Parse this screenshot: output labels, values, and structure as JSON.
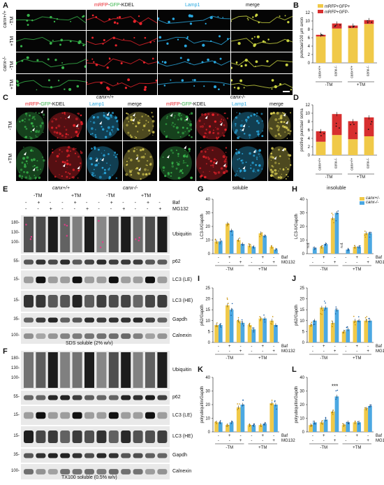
{
  "panels": [
    "A",
    "B",
    "C",
    "D",
    "E",
    "F",
    "G",
    "H",
    "I",
    "J",
    "K",
    "L"
  ],
  "colors": {
    "mrfp": "#e8232b",
    "gfp": "#37b34a",
    "lamp1": "#29a8df",
    "yellow": "#f0c948",
    "blue": "#4ba8e2",
    "red": "#d72f2f",
    "pinkDot": "#e83b8b"
  },
  "A": {
    "h_mrfp": "mRFP",
    "h_sep1": "-",
    "h_gfp": "GFP",
    "h_sep2": "-",
    "h_kdel": "KDEL",
    "h_lamp1": "Lamp1",
    "h_merge": "merge",
    "g_wt": "canx+/+",
    "g_ko": "canx-/-",
    "tm_neg": "-TM",
    "tm_pos": "+TM"
  },
  "C": {
    "wt": "canx+/+",
    "ko": "canx-/-",
    "h_mrfp": "mRFP",
    "h_sep1": "-",
    "h_gfp": "GFP",
    "h_sep2": "-",
    "h_kdel": "KDEL",
    "h_lamp1": "Lamp1",
    "h_merge": "merge",
    "tm_neg": "-TM",
    "tm_pos": "+TM"
  },
  "E": {
    "wt": "canx+/+",
    "ko": "canx-/-",
    "tm_neg": "-TM",
    "tm_pos": "+TM",
    "baf": "Baf",
    "mg132": "MG132",
    "baf_row": [
      "-",
      "+",
      "-",
      "-",
      "+",
      "-",
      "-",
      "+",
      "-",
      "-",
      "+",
      "-"
    ],
    "mg_row": [
      "-",
      "-",
      "+",
      "-",
      "-",
      "+",
      "-",
      "-",
      "+",
      "-",
      "-",
      "+"
    ],
    "rows": [
      "Ubiquitin",
      "p62",
      "LC3 (LE)",
      "LC3 (HE)",
      "Gapdh",
      "Calnexin"
    ],
    "mw_ubq": [
      "180-",
      "130-",
      "100-"
    ],
    "mw_p62": "55-",
    "mw_lc3le": "15-",
    "mw_lc3he": "15-",
    "mw_gapdh": "35-",
    "mw_calnexin": "100-",
    "footer": "SDS soluble (2% w/v)"
  },
  "F": {
    "rows": [
      "Ubiquitin",
      "p62",
      "LC3 (LE)",
      "LC3 (HE)",
      "Gapdh",
      "Calnexin"
    ],
    "mw_ubq": [
      "180-",
      "130-",
      "100-"
    ],
    "mw_p62": "55-",
    "mw_lc3le": "15-",
    "mw_lc3he": "15-",
    "mw_gapdh": "35-",
    "mw_calnexin": "100-",
    "footer": "TX100 soluble (0.5% w/v)"
  },
  "G": {
    "title": "soluble"
  },
  "H": {
    "title": "insoluble",
    "nd": "n.d."
  },
  "L": {
    "sig": "***"
  },
  "legend_bar": {
    "wt": "canx+/-",
    "ko": "canx-/-"
  },
  "chart_data": [
    {
      "panel": "B",
      "type": "bar",
      "ylabel": "punctae/100 µm axon",
      "ylim": [
        0,
        12
      ],
      "yticks": [
        0,
        2,
        4,
        6,
        8,
        10,
        12
      ],
      "categories": [
        "canx+/+",
        "canx-/-",
        "canx+/+",
        "canx-/-"
      ],
      "groups": [
        "-TM",
        "+TM"
      ],
      "series": [
        {
          "name": "mRFP+GFP+",
          "values": [
            6.3,
            8.2,
            8.3,
            9.3
          ]
        },
        {
          "name": "mRFP+GFP-",
          "values": [
            0.4,
            1.2,
            0.6,
            0.9
          ]
        }
      ],
      "legend": [
        "mRFP+GFP+",
        "mRFP+GFP-"
      ]
    },
    {
      "panel": "D",
      "type": "bar",
      "ylabel": "positive punctae/ soma",
      "ylim": [
        0,
        12
      ],
      "yticks": [
        0,
        2,
        4,
        6,
        8,
        10,
        12
      ],
      "categories": [
        "canx+/+",
        "canx-/-",
        "canx+/+",
        "canx-/-"
      ],
      "groups": [
        "-TM",
        "+TM"
      ],
      "series": [
        {
          "name": "mRFP+GFP+",
          "values": [
            3.2,
            4.8,
            3.8,
            4.5
          ]
        },
        {
          "name": "mRFP+GFP-",
          "values": [
            2.5,
            5.0,
            4.3,
            4.5
          ]
        }
      ]
    },
    {
      "panel": "G",
      "type": "bar",
      "title": "soluble",
      "ylabel": "LC3-II/Gapdh",
      "ylim": [
        0,
        40
      ],
      "yticks": [
        0,
        10,
        20,
        30,
        40
      ],
      "baf": [
        "-",
        "+",
        "-",
        "-",
        "+",
        "-"
      ],
      "mg132": [
        "-",
        "-",
        "+",
        "-",
        "-",
        "+"
      ],
      "groups": [
        "-TM",
        "+TM"
      ],
      "series": [
        {
          "name": "canx+/-",
          "values": [
            9,
            22,
            10,
            6,
            15,
            5
          ]
        },
        {
          "name": "canx-/-",
          "values": [
            9,
            17,
            7,
            5,
            13,
            3
          ]
        }
      ]
    },
    {
      "panel": "H",
      "type": "bar",
      "title": "insoluble",
      "ylabel": "LC3-II/Gapdh",
      "ylim": [
        0,
        40
      ],
      "yticks": [
        0,
        10,
        20,
        30,
        40
      ],
      "baf": [
        "-",
        "+",
        "-",
        "-",
        "+",
        "-"
      ],
      "mg132": [
        "-",
        "-",
        "+",
        "-",
        "-",
        "+"
      ],
      "groups": [
        "-TM",
        "+TM"
      ],
      "series": [
        {
          "name": "canx+/-",
          "values": [
            0,
            5,
            26,
            0,
            5,
            15
          ]
        },
        {
          "name": "canx-/-",
          "values": [
            4,
            7,
            30,
            3,
            5,
            15
          ]
        }
      ]
    },
    {
      "panel": "I",
      "type": "bar",
      "ylabel": "p62/Gapdh",
      "ylim": [
        0,
        25
      ],
      "yticks": [
        0,
        5,
        10,
        15,
        20,
        25
      ],
      "baf": [
        "-",
        "+",
        "-",
        "-",
        "+",
        "-"
      ],
      "mg132": [
        "-",
        "-",
        "+",
        "-",
        "-",
        "+"
      ],
      "groups": [
        "-TM",
        "+TM"
      ],
      "series": [
        {
          "name": "canx+/-",
          "values": [
            8,
            17,
            10,
            8,
            11,
            10
          ]
        },
        {
          "name": "canx-/-",
          "values": [
            8,
            15,
            9,
            6,
            11,
            8
          ]
        }
      ]
    },
    {
      "panel": "J",
      "type": "bar",
      "ylabel": "p62/Gapdh",
      "ylim": [
        0,
        25
      ],
      "yticks": [
        0,
        5,
        10,
        15,
        20,
        25
      ],
      "baf": [
        "-",
        "+",
        "-",
        "-",
        "+",
        "-"
      ],
      "mg132": [
        "-",
        "-",
        "+",
        "-",
        "-",
        "+"
      ],
      "groups": [
        "-TM",
        "+TM"
      ],
      "series": [
        {
          "name": "canx+/-",
          "values": [
            8,
            16,
            9,
            5,
            10,
            10
          ]
        },
        {
          "name": "canx-/-",
          "values": [
            10,
            16,
            15,
            6,
            10,
            10
          ]
        }
      ]
    },
    {
      "panel": "K",
      "type": "bar",
      "ylabel": "polyubiquitin/Gapdh",
      "ylim": [
        0,
        40
      ],
      "yticks": [
        0,
        10,
        20,
        30,
        40
      ],
      "baf": [
        "-",
        "+",
        "-",
        "-",
        "+",
        "-"
      ],
      "mg132": [
        "-",
        "-",
        "+",
        "-",
        "-",
        "+"
      ],
      "groups": [
        "-TM",
        "+TM"
      ],
      "series": [
        {
          "name": "canx+/-",
          "values": [
            7,
            5,
            18,
            5,
            5,
            21
          ]
        },
        {
          "name": "canx-/-",
          "values": [
            7,
            7,
            20,
            5,
            6,
            20
          ]
        }
      ]
    },
    {
      "panel": "L",
      "type": "bar",
      "ylabel": "polyubiquitin/Gapdh",
      "ylim": [
        0,
        40
      ],
      "yticks": [
        0,
        10,
        20,
        30,
        40
      ],
      "baf": [
        "-",
        "+",
        "-",
        "-",
        "+",
        "-"
      ],
      "mg132": [
        "-",
        "-",
        "+",
        "-",
        "-",
        "+"
      ],
      "groups": [
        "-TM",
        "+TM"
      ],
      "series": [
        {
          "name": "canx+/-",
          "values": [
            5,
            7,
            15,
            5,
            7,
            17
          ]
        },
        {
          "name": "canx-/-",
          "values": [
            7,
            9,
            26,
            7,
            7,
            19
          ]
        }
      ],
      "annotation": "***"
    }
  ]
}
